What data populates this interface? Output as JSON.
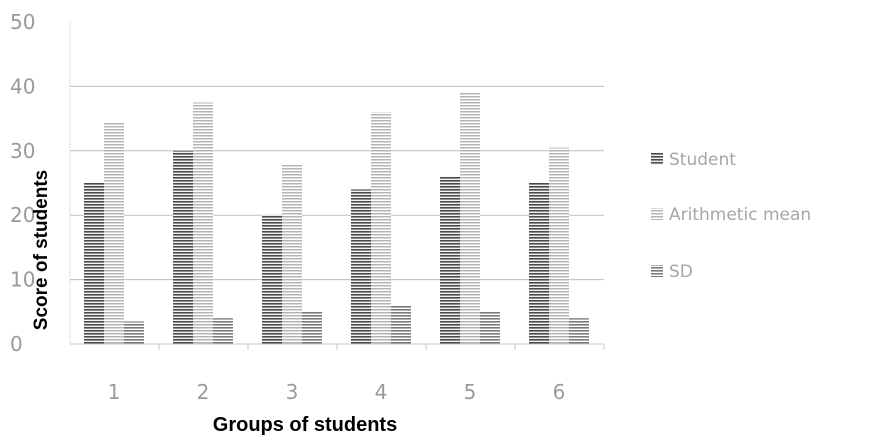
{
  "chart_data": {
    "type": "bar",
    "title": "",
    "xlabel": "Groups of students",
    "ylabel": "Score of students",
    "categories": [
      "1",
      "2",
      "3",
      "4",
      "5",
      "6"
    ],
    "series": [
      {
        "name": "Student",
        "values": [
          25,
          30,
          20,
          24,
          26,
          25
        ]
      },
      {
        "name": "Arithmetic mean",
        "values": [
          34.5,
          37.5,
          28,
          36,
          39,
          30.5
        ]
      },
      {
        "name": "SD",
        "values": [
          3.5,
          4,
          5,
          6,
          5,
          4
        ]
      }
    ],
    "ylim": [
      0,
      50
    ],
    "yticks": [
      "0",
      "10",
      "20",
      "30",
      "40",
      "50"
    ],
    "grid": true,
    "legend_position": "right",
    "colors": {
      "Student": "#5a5a5a",
      "Arithmetic mean": "#bdbdbd",
      "SD": "#8a8a8a",
      "gridline": "#bfbfbf",
      "axis": "#c8c8c8",
      "tick_text": "#9a9a9a"
    }
  }
}
